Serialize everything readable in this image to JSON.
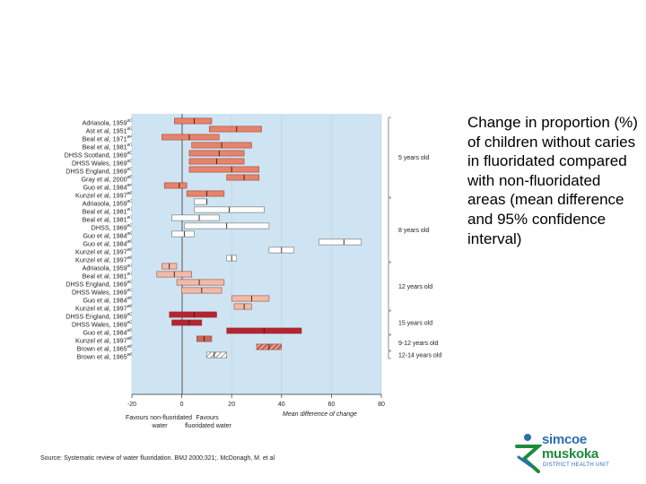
{
  "caption": "Change in proportion (%) of children without caries in fluoridated compared with non-fluoridated areas (mean difference and 95% confidence interval)",
  "source": "Source: Systematic review of water fluoridation. BMJ 2000;321;. McDonagh, M. et al",
  "logo": {
    "line1": "simcoe",
    "line2": "muskoka",
    "line3": "DISTRICT HEALTH UNIT"
  },
  "chart_data": {
    "type": "forest",
    "title": "",
    "xlabel": "Mean difference of change",
    "xlim": [
      -20,
      80
    ],
    "x_ticks": [
      "-20",
      "0",
      "20",
      "40",
      "60",
      "80"
    ],
    "favours_left": "Favours non-fluoridated water",
    "favours_right": "Favours fluoridated water",
    "colors": {
      "5 years old": "#e9826a",
      "8 years old": "#ffffff",
      "12 years old": "#f2bba8",
      "15 years old": "#b52433",
      "9-12 years old": "#cc6655",
      "12-14 years old": "#ffffff"
    },
    "groups": [
      {
        "name": "5 years old",
        "studies": [
          {
            "label": "Adriasola, 1959",
            "ref": "w1",
            "low": -3,
            "mean": 5,
            "high": 12
          },
          {
            "label": "Ast et al, 1951",
            "ref": "w2",
            "low": 11,
            "mean": 22,
            "high": 32
          },
          {
            "label": "Beal et al, 1971",
            "ref": "w4",
            "low": -8,
            "mean": 3,
            "high": 15
          },
          {
            "label": "Beal et al, 1981",
            "ref": "w7",
            "low": 4,
            "mean": 16,
            "high": 28
          },
          {
            "label": "DHSS Scotland, 1969",
            "ref": "w3",
            "low": 3,
            "mean": 15,
            "high": 25
          },
          {
            "label": "DHSS Wales, 1969",
            "ref": "w3",
            "low": 3,
            "mean": 14,
            "high": 25
          },
          {
            "label": "DHSS England, 1969",
            "ref": "w3",
            "low": 3,
            "mean": 20,
            "high": 31
          },
          {
            "label": "Gray et al, 2000",
            "ref": "w5",
            "low": 18,
            "mean": 25,
            "high": 31
          },
          {
            "label": "Guo et al, 1984",
            "ref": "w4",
            "low": -7,
            "mean": -1,
            "high": 2
          },
          {
            "label": "Kunzel et al, 1997",
            "ref": "w8",
            "low": 2,
            "mean": 10,
            "high": 17
          }
        ]
      },
      {
        "name": "8 years old",
        "studies": [
          {
            "label": "Adriasola, 1959",
            "ref": "w1",
            "low": 5,
            "mean": 10,
            "high": 10
          },
          {
            "label": "Beal et al, 1981",
            "ref": "w7",
            "low": 5,
            "mean": 19,
            "high": 33
          },
          {
            "label": "Beal et al, 1981",
            "ref": "w7",
            "low": -4,
            "mean": 7,
            "high": 15
          },
          {
            "label": "DHSS, 1969",
            "ref": "w3",
            "low": 1,
            "mean": 18,
            "high": 35
          },
          {
            "label": "Guo et al, 1984",
            "ref": "w9",
            "low": -4,
            "mean": 1,
            "high": 5
          },
          {
            "label": "Guo et al, 1984",
            "ref": "w9",
            "low": 55,
            "mean": 65,
            "high": 72
          },
          {
            "label": "Kunzel et al, 1997",
            "ref": "w8",
            "low": 35,
            "mean": 40,
            "high": 45
          },
          {
            "label": "Kunzel et al, 1997",
            "ref": "w8",
            "low": 18,
            "mean": 20,
            "high": 22
          }
        ]
      },
      {
        "name": "12 years old",
        "studies": [
          {
            "label": "Adriasola, 1959",
            "ref": "w1",
            "low": -8,
            "mean": -5,
            "high": -2
          },
          {
            "label": "Beal et al, 1981",
            "ref": "w7",
            "low": -10,
            "mean": -3,
            "high": 4
          },
          {
            "label": "DHSS England, 1969",
            "ref": "w3",
            "low": -2,
            "mean": 7,
            "high": 17
          },
          {
            "label": "DHSS Wales, 1969",
            "ref": "w3",
            "low": 0,
            "mean": 8,
            "high": 16
          },
          {
            "label": "Guo et al, 1984",
            "ref": "w9",
            "low": 20,
            "mean": 28,
            "high": 35
          },
          {
            "label": "Kunzel et al, 1997",
            "ref": "w8",
            "low": 21,
            "mean": 25,
            "high": 28
          }
        ]
      },
      {
        "name": "15 years old",
        "studies": [
          {
            "label": "DHSS England, 1969",
            "ref": "w3",
            "low": -5,
            "mean": 5,
            "high": 14
          },
          {
            "label": "DHSS Wales, 1969",
            "ref": "w3",
            "low": -4,
            "mean": 3,
            "high": 8
          },
          {
            "label": "Guo et al, 1984",
            "ref": "w9",
            "low": 18,
            "mean": 33,
            "high": 48
          }
        ]
      },
      {
        "name": "9-12 years old",
        "studies": [
          {
            "label": "Kunzel et al, 1997",
            "ref": "w8",
            "low": 6,
            "mean": 9,
            "high": 12
          },
          {
            "label": "Brown et al, 1965",
            "ref": "w6",
            "low": 30,
            "mean": 35,
            "high": 40
          }
        ]
      },
      {
        "name": "12-14 years old",
        "studies": [
          {
            "label": "Brown et al, 1965",
            "ref": "w6",
            "low": 10,
            "mean": 13,
            "high": 18
          }
        ]
      }
    ]
  }
}
